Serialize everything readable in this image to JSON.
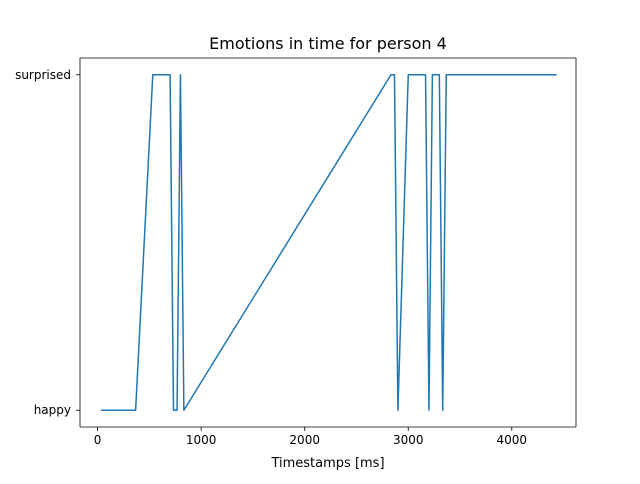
{
  "chart_data": {
    "type": "line",
    "title": "Emotions in time for person 4",
    "xlabel": "Timestamps [ms]",
    "ylabel": "",
    "xlim": [
      -170,
      4620
    ],
    "ylim": [
      -0.05,
      1.05
    ],
    "x_ticks": [
      0,
      1000,
      2000,
      3000,
      4000
    ],
    "x_tick_labels": [
      "0",
      "1000",
      "2000",
      "3000",
      "4000"
    ],
    "y_categories": [
      "happy",
      "surprised"
    ],
    "y_tick_values": [
      0,
      1
    ],
    "grid": false,
    "series": [
      {
        "color": "#1f77b4",
        "x": [
          33,
          367,
          533,
          700,
          733,
          767,
          800,
          833,
          2833,
          2867,
          2900,
          3000,
          3167,
          3200,
          3233,
          3300,
          3333,
          3367,
          4433
        ],
        "y": [
          0,
          0,
          1,
          1,
          0,
          0,
          1,
          0,
          1,
          1,
          0,
          1,
          1,
          0,
          1,
          1,
          0,
          1,
          1
        ]
      }
    ]
  }
}
